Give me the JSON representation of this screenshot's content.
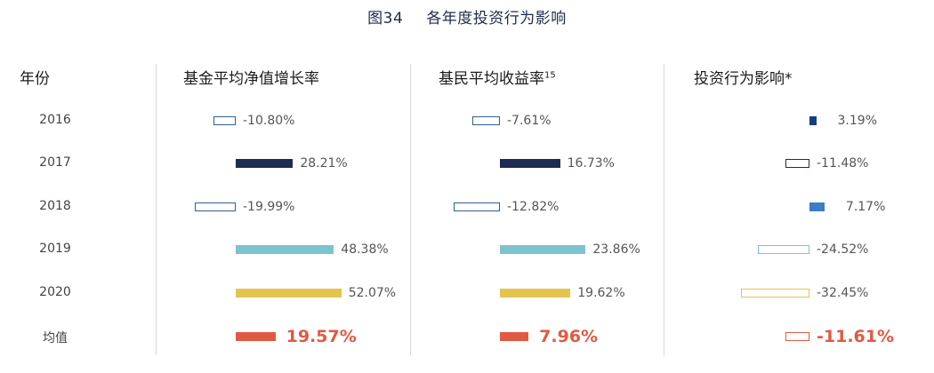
{
  "title": {
    "figure": "图34",
    "text": "各年度投资行为影响"
  },
  "headers": {
    "year": "年份",
    "fund_nav": "基金平均净值增长率",
    "investor": "基民平均收益率",
    "investor_sup": "15",
    "behavior": "投资行为影响*"
  },
  "colors": {
    "navy": "#1f2a55",
    "dark_blue": "#13407a",
    "mid_blue": "#3a7fc1",
    "outline_blue": "#2f5f8f",
    "teal": "#7bc4cf",
    "yellow": "#e3c44e",
    "red": "#e05a43"
  },
  "chart_data": {
    "type": "bar",
    "categories": [
      "2016",
      "2017",
      "2018",
      "2019",
      "2020",
      "均值"
    ],
    "series": [
      {
        "name": "基金平均净值增长率",
        "values": [
          -10.8,
          28.21,
          -19.99,
          48.38,
          52.07,
          19.57
        ],
        "labels": [
          "-10.80%",
          "28.21%",
          "-19.99%",
          "48.38%",
          "52.07%",
          "19.57%"
        ]
      },
      {
        "name": "基民平均收益率",
        "values": [
          -7.61,
          16.73,
          -12.82,
          23.86,
          19.62,
          7.96
        ],
        "labels": [
          "-7.61%",
          "16.73%",
          "-12.82%",
          "23.86%",
          "19.62%",
          "7.96%"
        ]
      },
      {
        "name": "投资行为影响*",
        "values": [
          3.19,
          -11.48,
          7.17,
          -24.52,
          -32.45,
          -11.61
        ],
        "labels": [
          "3.19%",
          "-11.48%",
          "7.17%",
          "-24.52%",
          "-32.45%",
          "-11.61%"
        ]
      }
    ],
    "row_styles": [
      [
        "hollow:outline_blue",
        "solid:navy",
        "hollow:outline_blue",
        "solid:teal",
        "solid:yellow",
        "solid:red"
      ],
      [
        "hollow:outline_blue",
        "solid:navy",
        "hollow:outline_blue",
        "solid:teal",
        "solid:yellow",
        "solid:red"
      ],
      [
        "solid:dark_blue",
        "hollow:navy",
        "solid:mid_blue",
        "hollow:teal",
        "hollow:yellow",
        "hollow:red"
      ]
    ],
    "legend": "none",
    "grid": false
  }
}
